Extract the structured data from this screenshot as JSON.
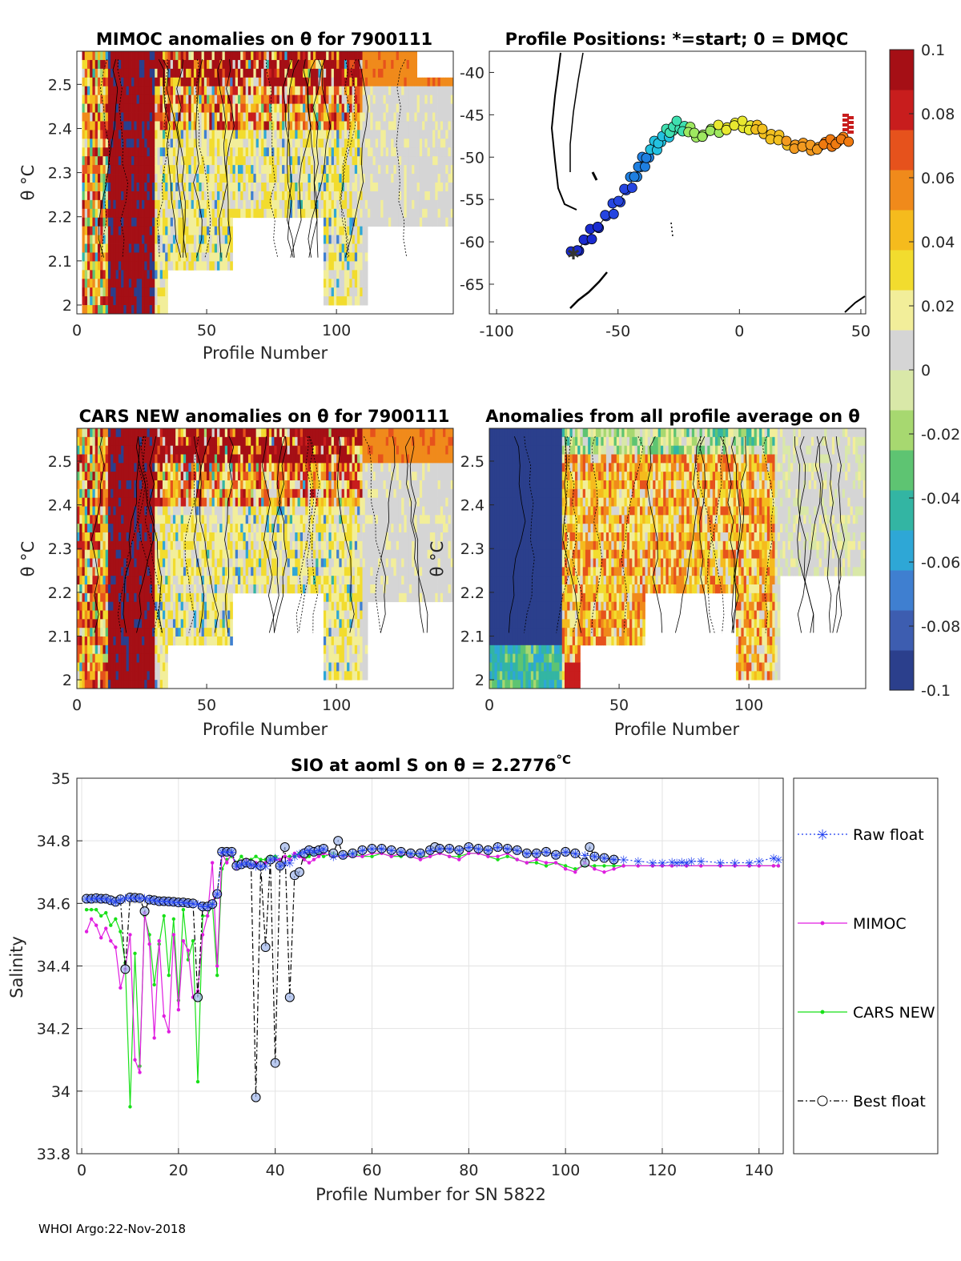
{
  "footer": "WHOI Argo:22-Nov-2018",
  "colorbar": {
    "min": -0.1,
    "max": 0.1,
    "ticks": [
      "0.1",
      "0.08",
      "0.06",
      "0.04",
      "0.02",
      "0",
      "-0.02",
      "-0.04",
      "-0.06",
      "-0.08",
      "-0.1"
    ],
    "colors": [
      "#2b3f8c",
      "#3d5db0",
      "#3f7fd0",
      "#2ea7d6",
      "#33b5a3",
      "#5ec472",
      "#a7d870",
      "#d9e8a8",
      "#d5d5d5",
      "#f2ee9a",
      "#f2dc2e",
      "#f5bb1d",
      "#f08a1b",
      "#e6521c",
      "#c81d1d",
      "#a50f15"
    ]
  },
  "panels": {
    "mimoc": {
      "title": "MIMOC anomalies on θ  for 7900111",
      "ylabel": "θ °C",
      "xlabel": "Profile Number",
      "xticks": [
        "0",
        "50",
        "100"
      ],
      "yticks": [
        "2",
        "2.1",
        "2.2",
        "2.3",
        "2.4",
        "2.5"
      ]
    },
    "positions": {
      "title": "Profile Positions: *=start; 0 = DMQC",
      "xticks": [
        "-100",
        "-50",
        "0",
        "50"
      ],
      "yticks": [
        "-40",
        "-45",
        "-50",
        "-55",
        "-60",
        "-65"
      ]
    },
    "cars": {
      "title": "CARS NEW anomalies on θ for 7900111",
      "ylabel": "θ °C",
      "xlabel": "Profile Number",
      "xticks": [
        "0",
        "50",
        "100"
      ],
      "yticks": [
        "2",
        "2.1",
        "2.2",
        "2.3",
        "2.4",
        "2.5"
      ]
    },
    "average": {
      "title": "Anomalies from all profile average on θ",
      "ylabel": "θ °C",
      "xlabel": "Profile Number",
      "xticks": [
        "0",
        "50",
        "100"
      ],
      "yticks": [
        "2",
        "2.1",
        "2.2",
        "2.3",
        "2.4",
        "2.5"
      ]
    }
  },
  "chart_data": {
    "type": "line",
    "title": "SIO at aoml S on θ = 2.2776",
    "title_unit": "°C",
    "xlabel": "Profile Number for SN 5822",
    "ylabel": "Salinity",
    "xlim": [
      -1,
      145
    ],
    "ylim": [
      33.8,
      35
    ],
    "xticks": [
      0,
      20,
      40,
      60,
      80,
      100,
      120,
      140
    ],
    "yticks": [
      33.8,
      34,
      34.2,
      34.4,
      34.6,
      34.8,
      35
    ],
    "grid": true,
    "legend_position": "outside-right",
    "series": [
      {
        "name": "Raw float",
        "color": "#1f3ff0",
        "marker": "star",
        "dash": "2,3",
        "x": [
          1,
          2,
          3,
          4,
          5,
          6,
          7,
          8,
          9,
          10,
          11,
          12,
          13,
          14,
          15,
          16,
          17,
          18,
          19,
          20,
          21,
          22,
          23,
          24,
          25,
          26,
          27,
          28,
          29,
          30,
          31,
          32,
          33,
          34,
          35,
          36,
          37,
          38,
          39,
          40,
          41,
          42,
          43,
          44,
          45,
          46,
          47,
          48,
          49,
          50,
          52,
          54,
          56,
          58,
          60,
          62,
          64,
          66,
          68,
          70,
          72,
          74,
          76,
          78,
          80,
          82,
          84,
          86,
          88,
          90,
          92,
          94,
          96,
          98,
          100,
          102,
          104,
          106,
          108,
          110,
          112,
          115,
          118,
          120,
          122,
          123,
          124,
          125,
          126,
          128,
          132,
          135,
          138,
          140,
          143,
          144
        ],
        "y": [
          34.615,
          34.615,
          34.617,
          34.615,
          34.615,
          34.61,
          34.605,
          34.613,
          34.618,
          34.619,
          34.618,
          34.617,
          34.617,
          34.612,
          34.61,
          34.607,
          34.607,
          34.606,
          34.605,
          34.603,
          34.603,
          34.601,
          34.6,
          34.598,
          34.59,
          34.59,
          34.598,
          34.63,
          34.765,
          34.765,
          34.765,
          34.72,
          34.725,
          34.73,
          34.725,
          34.72,
          34.72,
          34.72,
          34.74,
          34.745,
          34.72,
          34.73,
          34.73,
          34.75,
          34.76,
          34.765,
          34.77,
          34.765,
          34.77,
          34.775,
          34.75,
          34.755,
          34.76,
          34.77,
          34.775,
          34.775,
          34.77,
          34.765,
          34.76,
          34.76,
          34.77,
          34.775,
          34.775,
          34.77,
          34.78,
          34.775,
          34.77,
          34.78,
          34.775,
          34.77,
          34.76,
          34.76,
          34.765,
          34.755,
          34.765,
          34.76,
          34.755,
          34.75,
          34.745,
          34.74,
          34.74,
          34.735,
          34.73,
          34.73,
          34.732,
          34.73,
          34.732,
          34.73,
          34.735,
          34.735,
          34.73,
          34.73,
          34.73,
          34.735,
          34.745,
          34.74
        ]
      },
      {
        "name": "MIMOC",
        "color": "#e01de0",
        "marker": "dot",
        "dash": "",
        "x": [
          1,
          2,
          3,
          4,
          5,
          6,
          7,
          8,
          9,
          10,
          11,
          12,
          13,
          14,
          15,
          16,
          17,
          18,
          19,
          20,
          21,
          22,
          23,
          24,
          25,
          26,
          27,
          28,
          29,
          30,
          31,
          32,
          33,
          34,
          35,
          36,
          37,
          38,
          39,
          40,
          41,
          42,
          43,
          44,
          45,
          46,
          47,
          48,
          49,
          50,
          52,
          54,
          56,
          58,
          60,
          62,
          64,
          66,
          68,
          70,
          72,
          74,
          76,
          78,
          80,
          82,
          84,
          86,
          88,
          90,
          92,
          94,
          96,
          98,
          100,
          102,
          104,
          106,
          108,
          110,
          112,
          115,
          118,
          120,
          122,
          125,
          128,
          132,
          135,
          138,
          140,
          143,
          144
        ],
        "y": [
          34.51,
          34.55,
          34.53,
          34.49,
          34.52,
          34.48,
          34.46,
          34.33,
          34.39,
          34.5,
          34.1,
          34.06,
          34.57,
          34.47,
          34.17,
          34.48,
          34.24,
          34.19,
          34.5,
          34.26,
          34.48,
          34.45,
          34.3,
          34.32,
          34.5,
          34.56,
          34.73,
          34.4,
          34.76,
          34.73,
          34.76,
          34.71,
          34.73,
          34.74,
          34.72,
          34.73,
          34.72,
          34.73,
          34.74,
          34.74,
          34.74,
          34.75,
          34.74,
          34.76,
          34.75,
          34.74,
          34.73,
          34.74,
          34.75,
          34.76,
          34.75,
          34.75,
          34.75,
          34.75,
          34.76,
          34.76,
          34.75,
          34.76,
          34.75,
          34.74,
          34.75,
          34.76,
          34.75,
          34.74,
          34.76,
          34.76,
          34.75,
          34.75,
          34.76,
          34.74,
          34.73,
          34.74,
          34.73,
          34.73,
          34.71,
          34.7,
          34.73,
          34.71,
          34.7,
          34.71,
          34.72,
          34.72,
          34.72,
          34.72,
          34.72,
          34.72,
          34.72,
          34.72,
          34.72,
          34.72,
          34.72,
          34.72,
          34.72
        ]
      },
      {
        "name": "CARS NEW",
        "color": "#18e018",
        "marker": "dot",
        "dash": "",
        "x": [
          1,
          2,
          3,
          4,
          5,
          6,
          7,
          8,
          9,
          10,
          11,
          12,
          13,
          14,
          15,
          16,
          17,
          18,
          19,
          20,
          21,
          22,
          23,
          24,
          25,
          26,
          27,
          28,
          29,
          30,
          31,
          32,
          33,
          34,
          35,
          36,
          37,
          38,
          39,
          40,
          41,
          42,
          43,
          44,
          45,
          46,
          47,
          48,
          49,
          50,
          52,
          54,
          56,
          58,
          60,
          62,
          64,
          66,
          68,
          70,
          72,
          74,
          76,
          78,
          80,
          82,
          84,
          86,
          88,
          90,
          92,
          94,
          96,
          98,
          100,
          102,
          104,
          106,
          108,
          110,
          112,
          115,
          118,
          120,
          122,
          125,
          128,
          132,
          135,
          138,
          140,
          143,
          144
        ],
        "y": [
          34.58,
          34.58,
          34.58,
          34.56,
          34.57,
          34.53,
          34.55,
          34.51,
          34.41,
          33.95,
          34.44,
          34.08,
          34.56,
          34.5,
          34.34,
          34.47,
          34.56,
          34.37,
          34.55,
          34.29,
          34.58,
          34.42,
          34.48,
          34.03,
          34.56,
          34.56,
          34.6,
          34.37,
          34.71,
          34.74,
          34.75,
          34.73,
          34.75,
          34.73,
          34.74,
          34.75,
          34.74,
          34.74,
          34.75,
          34.75,
          34.74,
          34.75,
          34.75,
          34.75,
          34.76,
          34.74,
          34.75,
          34.76,
          34.76,
          34.75,
          34.76,
          34.75,
          34.76,
          34.75,
          34.75,
          34.76,
          34.75,
          34.75,
          34.76,
          34.75,
          34.75,
          34.76,
          34.75,
          34.75,
          34.76,
          34.76,
          34.75,
          34.74,
          34.75,
          34.74,
          34.73,
          34.73,
          34.72,
          34.73,
          34.72,
          34.71,
          34.72,
          34.72,
          34.72,
          34.72,
          34.72,
          34.72,
          34.72,
          34.72,
          34.72,
          34.72,
          34.72,
          34.72,
          34.72,
          34.72,
          34.72,
          34.72,
          34.72
        ]
      },
      {
        "name": "Best float",
        "color": "#000000",
        "marker": "circle",
        "dash": "7,3,2,3",
        "x": [
          1,
          2,
          3,
          4,
          5,
          6,
          7,
          8,
          9,
          10,
          11,
          12,
          13,
          14,
          15,
          16,
          17,
          18,
          19,
          20,
          21,
          22,
          23,
          24,
          25,
          26,
          27,
          28,
          29,
          30,
          31,
          32,
          33,
          34,
          35,
          36,
          37,
          38,
          39,
          40,
          41,
          42,
          43,
          44,
          45,
          46,
          47,
          48,
          49,
          50,
          52,
          53,
          54,
          56,
          58,
          60,
          62,
          64,
          66,
          68,
          70,
          72,
          73,
          74,
          76,
          78,
          80,
          82,
          84,
          86,
          88,
          90,
          92,
          94,
          96,
          98,
          100,
          102,
          104,
          105,
          106,
          108,
          110
        ],
        "y": [
          34.615,
          34.615,
          34.617,
          34.615,
          34.615,
          34.61,
          34.605,
          34.613,
          34.39,
          34.619,
          34.618,
          34.617,
          34.575,
          34.612,
          34.61,
          34.607,
          34.607,
          34.606,
          34.605,
          34.603,
          34.603,
          34.601,
          34.6,
          34.3,
          34.59,
          34.59,
          34.598,
          34.63,
          34.765,
          34.765,
          34.765,
          34.72,
          34.725,
          34.73,
          34.725,
          33.98,
          34.72,
          34.46,
          34.74,
          34.09,
          34.72,
          34.78,
          34.3,
          34.69,
          34.7,
          34.76,
          34.77,
          34.765,
          34.77,
          34.775,
          34.76,
          34.8,
          34.755,
          34.76,
          34.77,
          34.775,
          34.775,
          34.77,
          34.765,
          34.76,
          34.76,
          34.77,
          34.78,
          34.775,
          34.775,
          34.77,
          34.78,
          34.775,
          34.77,
          34.78,
          34.775,
          34.77,
          34.76,
          34.76,
          34.765,
          34.755,
          34.765,
          34.76,
          34.73,
          34.78,
          34.75,
          34.745,
          34.74
        ]
      }
    ]
  }
}
